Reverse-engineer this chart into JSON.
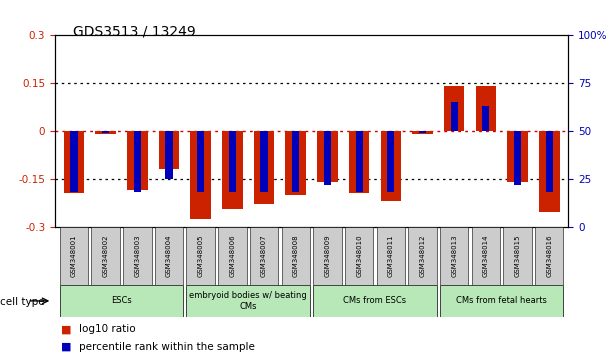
{
  "title": "GDS3513 / 13249",
  "samples": [
    "GSM348001",
    "GSM348002",
    "GSM348003",
    "GSM348004",
    "GSM348005",
    "GSM348006",
    "GSM348007",
    "GSM348008",
    "GSM348009",
    "GSM348010",
    "GSM348011",
    "GSM348012",
    "GSM348013",
    "GSM348014",
    "GSM348015",
    "GSM348016"
  ],
  "log10_ratio": [
    -0.195,
    -0.01,
    -0.185,
    -0.12,
    -0.275,
    -0.245,
    -0.23,
    -0.2,
    -0.16,
    -0.195,
    -0.22,
    -0.01,
    0.14,
    0.14,
    -0.16,
    -0.255
  ],
  "percentile_rank": [
    18,
    49,
    18,
    25,
    18,
    18,
    18,
    18,
    22,
    18,
    18,
    49,
    65,
    63,
    22,
    18
  ],
  "cell_groups": [
    {
      "label": "ESCs",
      "start": 0,
      "end": 3,
      "color": "#b8e8b8"
    },
    {
      "label": "embryoid bodies w/ beating\nCMs",
      "start": 4,
      "end": 7,
      "color": "#b8e8b8"
    },
    {
      "label": "CMs from ESCs",
      "start": 8,
      "end": 11,
      "color": "#b8e8b8"
    },
    {
      "label": "CMs from fetal hearts",
      "start": 12,
      "end": 15,
      "color": "#b8e8b8"
    }
  ],
  "ylim_left": [
    -0.3,
    0.3
  ],
  "ylim_right": [
    0,
    100
  ],
  "yticks_left": [
    -0.3,
    -0.15,
    0,
    0.15,
    0.3
  ],
  "yticks_right": [
    0,
    25,
    50,
    75,
    100
  ],
  "bar_color_red": "#cc2200",
  "bar_color_blue": "#0000bb",
  "zero_line_color": "#cc0000",
  "dotted_line_color": "#000000",
  "sample_box_color": "#cccccc",
  "legend_items": [
    "log10 ratio",
    "percentile rank within the sample"
  ]
}
